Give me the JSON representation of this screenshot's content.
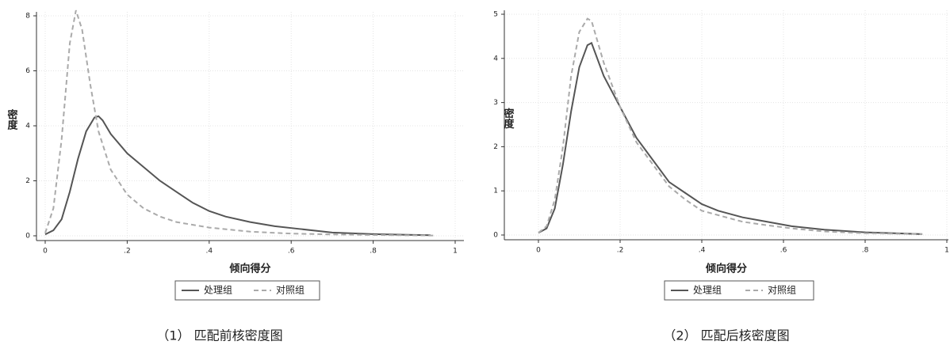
{
  "chart_data": [
    {
      "type": "line",
      "caption": "（1） 匹配前核密度图",
      "xlabel": "倾向得分",
      "ylabel": "密度",
      "legend": "bottom",
      "grid": true,
      "xlim": [
        0,
        1
      ],
      "ylim": [
        0,
        8
      ],
      "xticks": [
        0,
        {
          "value": 0.2,
          "label": ".2"
        },
        {
          "value": 0.4,
          "label": ".4"
        },
        {
          "value": 0.6,
          "label": ".6"
        },
        {
          "value": 0.8,
          "label": ".8"
        },
        1
      ],
      "yticks": [
        0,
        2,
        4,
        6,
        8
      ],
      "series": [
        {
          "name": "处理组",
          "color": "#555555",
          "linestyle": "solid",
          "x": [
            0,
            0.02,
            0.04,
            0.06,
            0.08,
            0.1,
            0.12,
            0.13,
            0.14,
            0.16,
            0.2,
            0.24,
            0.28,
            0.32,
            0.36,
            0.4,
            0.44,
            0.5,
            0.56,
            0.62,
            0.7,
            0.8,
            0.94
          ],
          "values": [
            0.05,
            0.2,
            0.6,
            1.6,
            2.8,
            3.8,
            4.3,
            4.35,
            4.2,
            3.7,
            3.0,
            2.5,
            2.0,
            1.6,
            1.2,
            0.9,
            0.7,
            0.5,
            0.35,
            0.25,
            0.12,
            0.06,
            0.02
          ]
        },
        {
          "name": "对照组",
          "color": "#aaaaaa",
          "linestyle": "dashed",
          "x": [
            0,
            0.02,
            0.04,
            0.06,
            0.075,
            0.09,
            0.11,
            0.13,
            0.16,
            0.2,
            0.24,
            0.28,
            0.32,
            0.4,
            0.5,
            0.6,
            0.7,
            0.8,
            0.95
          ],
          "values": [
            0.1,
            1.0,
            3.5,
            7.0,
            8.2,
            7.5,
            5.5,
            3.8,
            2.4,
            1.5,
            1.0,
            0.7,
            0.5,
            0.3,
            0.15,
            0.08,
            0.05,
            0.03,
            0.01
          ]
        }
      ]
    },
    {
      "type": "line",
      "caption": "（2） 匹配后核密度图",
      "xlabel": "倾向得分",
      "ylabel": "密度",
      "legend": "bottom",
      "grid": true,
      "xlim": [
        0,
        1
      ],
      "ylim": [
        0,
        5
      ],
      "xticks": [
        0,
        {
          "value": 0.2,
          "label": ".2"
        },
        {
          "value": 0.4,
          "label": ".4"
        },
        {
          "value": 0.6,
          "label": ".6"
        },
        {
          "value": 0.8,
          "label": ".8"
        },
        1
      ],
      "yticks": [
        0,
        1,
        2,
        3,
        4,
        5
      ],
      "series": [
        {
          "name": "处理组",
          "color": "#555555",
          "linestyle": "solid",
          "x": [
            0,
            0.02,
            0.04,
            0.06,
            0.08,
            0.1,
            0.12,
            0.13,
            0.16,
            0.2,
            0.24,
            0.28,
            0.32,
            0.36,
            0.4,
            0.44,
            0.5,
            0.56,
            0.62,
            0.7,
            0.8,
            0.94
          ],
          "values": [
            0.05,
            0.15,
            0.6,
            1.6,
            2.8,
            3.8,
            4.3,
            4.35,
            3.6,
            2.9,
            2.2,
            1.7,
            1.2,
            0.95,
            0.7,
            0.55,
            0.4,
            0.3,
            0.2,
            0.12,
            0.06,
            0.02
          ]
        },
        {
          "name": "对照组",
          "color": "#aaaaaa",
          "linestyle": "dashed",
          "x": [
            0,
            0.02,
            0.04,
            0.06,
            0.08,
            0.1,
            0.12,
            0.13,
            0.16,
            0.2,
            0.24,
            0.28,
            0.32,
            0.36,
            0.4,
            0.44,
            0.5,
            0.56,
            0.62,
            0.7,
            0.8,
            0.94
          ],
          "values": [
            0.05,
            0.2,
            0.8,
            2.0,
            3.6,
            4.6,
            4.9,
            4.85,
            3.9,
            2.9,
            2.1,
            1.6,
            1.1,
            0.8,
            0.55,
            0.45,
            0.3,
            0.22,
            0.15,
            0.08,
            0.04,
            0.02
          ]
        }
      ]
    }
  ]
}
